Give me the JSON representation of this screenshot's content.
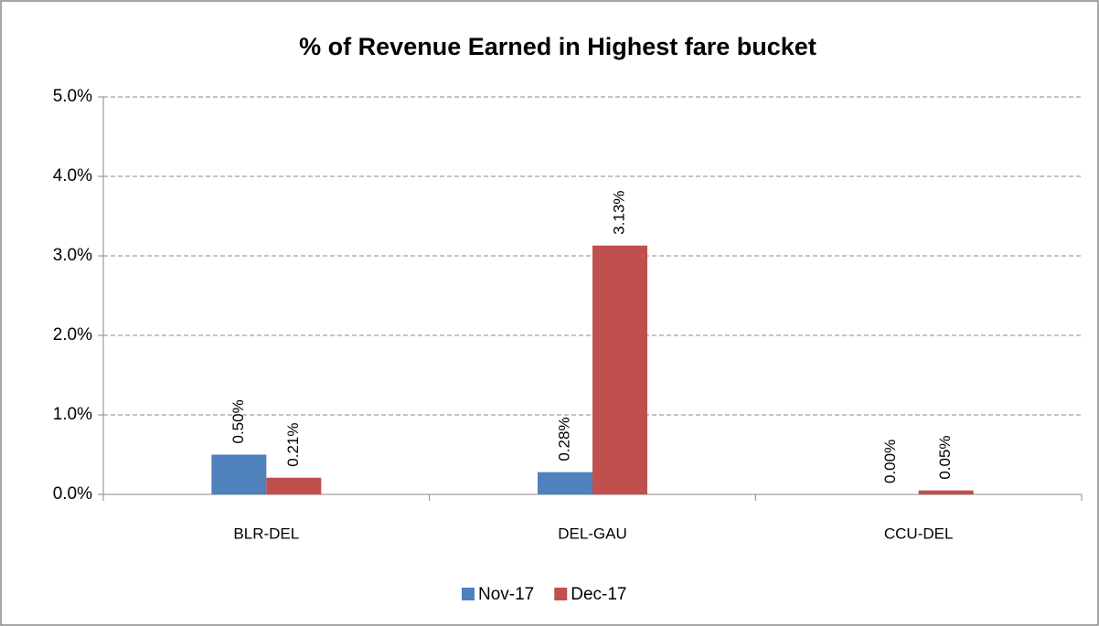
{
  "chart_data": {
    "type": "bar",
    "title": "% of Revenue Earned in Highest fare bucket",
    "categories": [
      "BLR-DEL",
      "DEL-GAU",
      "CCU-DEL"
    ],
    "series": [
      {
        "name": "Nov-17",
        "color": "#4f81bd",
        "values": [
          0.5,
          0.28,
          0
        ],
        "value_labels": [
          "0.50%",
          "0.28%",
          "0.00%"
        ]
      },
      {
        "name": "Dec-17",
        "color": "#c0504d",
        "values": [
          0.21,
          3.13,
          0.05
        ],
        "value_labels": [
          "0.21%",
          "3.13%",
          "0.05%"
        ]
      }
    ],
    "ylim": [
      0,
      5
    ],
    "yticks": [
      {
        "value": 0,
        "label": "0.0%"
      },
      {
        "value": 1,
        "label": "1.0%"
      },
      {
        "value": 2,
        "label": "2.0%"
      },
      {
        "value": 3,
        "label": "3.0%"
      },
      {
        "value": 4,
        "label": "4.0%"
      },
      {
        "value": 5,
        "label": "5.0%"
      }
    ],
    "grid": true,
    "legend": "bottom"
  }
}
